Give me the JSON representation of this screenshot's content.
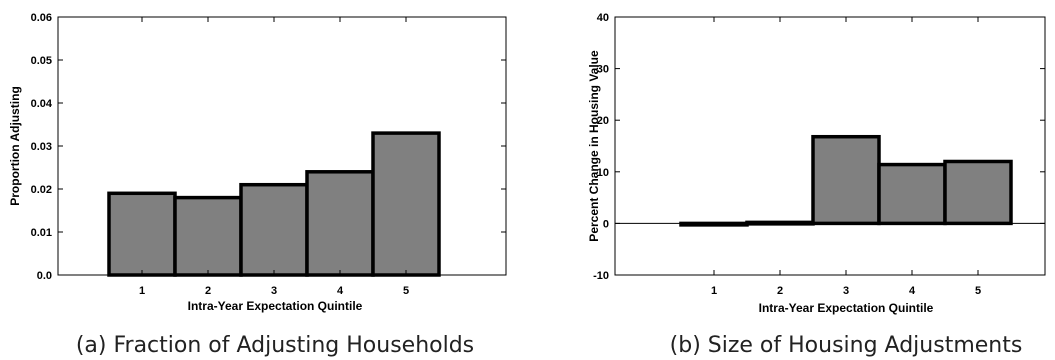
{
  "chart_data": [
    {
      "type": "bar",
      "categories": [
        "1",
        "2",
        "3",
        "4",
        "5"
      ],
      "values": [
        0.019,
        0.018,
        0.021,
        0.024,
        0.033
      ],
      "xlabel": "Intra-Year Expectation Quintile",
      "ylabel": "Proportion Adjusting",
      "ylim": [
        0,
        0.06
      ],
      "yticks": [
        "0.0",
        "0.01",
        "0.02",
        "0.03",
        "0.04",
        "0.05",
        "0.06"
      ],
      "caption": "(a) Fraction of Adjusting Households",
      "bar_color": "#808080",
      "grid": false
    },
    {
      "type": "bar",
      "categories": [
        "1",
        "2",
        "3",
        "4",
        "5"
      ],
      "values": [
        0,
        0.2,
        16.8,
        11.4,
        12.0
      ],
      "xlabel": "Intra-Year Expectation Quintile",
      "ylabel": "Percent Change in Housing Value",
      "ylim": [
        -10,
        40
      ],
      "yticks": [
        "-10",
        "0",
        "10",
        "20",
        "30",
        "40"
      ],
      "caption": "(b) Size of Housing Adjustments",
      "bar_color": "#808080",
      "zero_line": true,
      "grid": false
    }
  ]
}
